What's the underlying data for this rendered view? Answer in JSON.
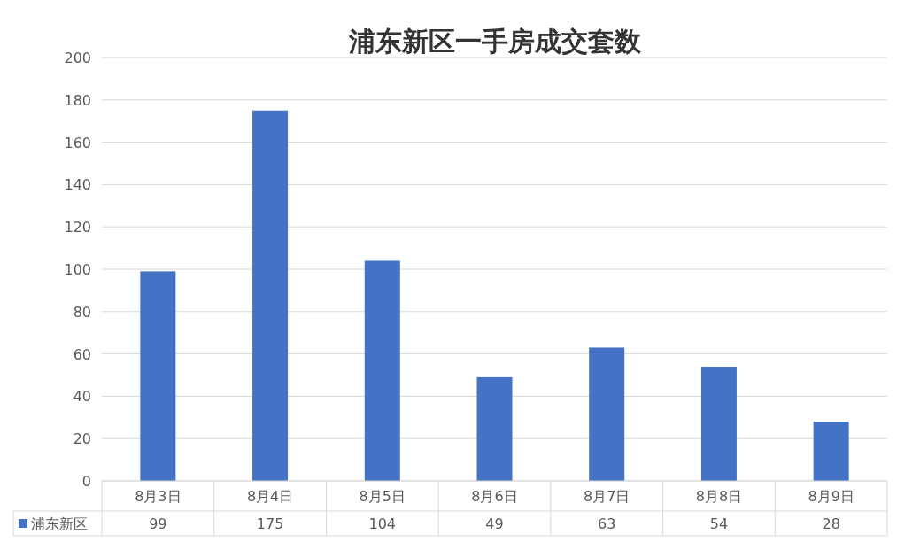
{
  "chart_data": {
    "type": "bar",
    "title": "浦东新区一手房成交套数",
    "categories": [
      "8月3日",
      "8月4日",
      "8月5日",
      "8月6日",
      "8月7日",
      "8月8日",
      "8月9日"
    ],
    "series": [
      {
        "name": "浦东新区",
        "color": "#4472c4",
        "values": [
          99,
          175,
          104,
          49,
          63,
          54,
          28
        ]
      }
    ],
    "ylim": [
      0,
      200
    ],
    "yticks": [
      0,
      20,
      40,
      60,
      80,
      100,
      120,
      140,
      160,
      180,
      200
    ],
    "grid": "y",
    "data_labels": true
  }
}
